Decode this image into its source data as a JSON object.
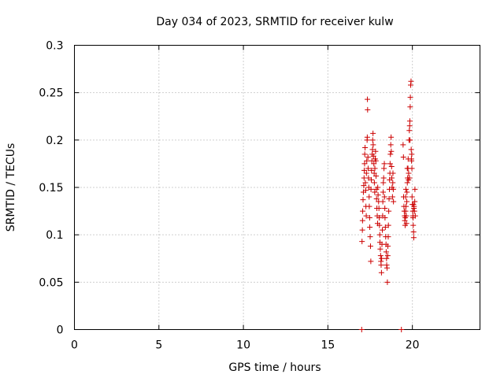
{
  "chart_data": {
    "type": "scatter",
    "title": "Day 034 of 2023, SRMTID for receiver kulw",
    "xlabel": "GPS time / hours",
    "ylabel": "SRMTID / TECUs",
    "xlim": [
      0,
      24
    ],
    "ylim": [
      0,
      0.3
    ],
    "x_ticks": [
      "0",
      "5",
      "10",
      "15",
      "20"
    ],
    "y_ticks": [
      "0",
      "0.05",
      "0.1",
      "0.15",
      "0.2",
      "0.25",
      "0.3"
    ],
    "grid": true,
    "legend": "none",
    "marker": "plus",
    "color": "#cc0000",
    "series": [
      {
        "values": [
          [
            17.0,
            0.0
          ],
          [
            19.35,
            0.0
          ],
          [
            17.02,
            0.093
          ],
          [
            17.04,
            0.105
          ],
          [
            17.05,
            0.115
          ],
          [
            17.06,
            0.125
          ],
          [
            17.08,
            0.137
          ],
          [
            17.1,
            0.145
          ],
          [
            17.12,
            0.152
          ],
          [
            17.14,
            0.16
          ],
          [
            17.15,
            0.168
          ],
          [
            17.17,
            0.175
          ],
          [
            17.18,
            0.185
          ],
          [
            17.2,
            0.192
          ],
          [
            17.22,
            0.155
          ],
          [
            17.24,
            0.147
          ],
          [
            17.25,
            0.13
          ],
          [
            17.27,
            0.12
          ],
          [
            17.28,
            0.165
          ],
          [
            17.3,
            0.178
          ],
          [
            17.32,
            0.2
          ],
          [
            17.33,
            0.203
          ],
          [
            17.34,
            0.243
          ],
          [
            17.35,
            0.232
          ],
          [
            17.37,
            0.182
          ],
          [
            17.38,
            0.17
          ],
          [
            17.4,
            0.16
          ],
          [
            17.42,
            0.15
          ],
          [
            17.44,
            0.14
          ],
          [
            17.45,
            0.13
          ],
          [
            17.47,
            0.118
          ],
          [
            17.48,
            0.108
          ],
          [
            17.5,
            0.098
          ],
          [
            17.52,
            0.088
          ],
          [
            17.54,
            0.072
          ],
          [
            17.55,
            0.148
          ],
          [
            17.57,
            0.158
          ],
          [
            17.58,
            0.168
          ],
          [
            17.6,
            0.178
          ],
          [
            17.62,
            0.185
          ],
          [
            17.64,
            0.19
          ],
          [
            17.65,
            0.2
          ],
          [
            17.67,
            0.207
          ],
          [
            17.68,
            0.195
          ],
          [
            17.7,
            0.183
          ],
          [
            17.72,
            0.175
          ],
          [
            17.74,
            0.165
          ],
          [
            17.75,
            0.155
          ],
          [
            17.77,
            0.145
          ],
          [
            17.78,
            0.17
          ],
          [
            17.8,
            0.18
          ],
          [
            17.82,
            0.188
          ],
          [
            17.84,
            0.178
          ],
          [
            17.85,
            0.162
          ],
          [
            17.87,
            0.148
          ],
          [
            17.88,
            0.138
          ],
          [
            17.9,
            0.128
          ],
          [
            17.92,
            0.12
          ],
          [
            17.94,
            0.112
          ],
          [
            17.95,
            0.15
          ],
          [
            17.97,
            0.142
          ],
          [
            18.0,
            0.135
          ],
          [
            18.02,
            0.128
          ],
          [
            18.04,
            0.118
          ],
          [
            18.05,
            0.11
          ],
          [
            18.07,
            0.1
          ],
          [
            18.08,
            0.092
          ],
          [
            18.1,
            0.085
          ],
          [
            18.12,
            0.078
          ],
          [
            18.14,
            0.072
          ],
          [
            18.15,
            0.068
          ],
          [
            18.17,
            0.06
          ],
          [
            18.18,
            0.075
          ],
          [
            18.2,
            0.09
          ],
          [
            18.22,
            0.105
          ],
          [
            18.24,
            0.12
          ],
          [
            18.25,
            0.135
          ],
          [
            18.27,
            0.145
          ],
          [
            18.28,
            0.155
          ],
          [
            18.3,
            0.16
          ],
          [
            18.32,
            0.17
          ],
          [
            18.34,
            0.175
          ],
          [
            18.35,
            0.14
          ],
          [
            18.37,
            0.128
          ],
          [
            18.38,
            0.118
          ],
          [
            18.4,
            0.108
          ],
          [
            18.42,
            0.098
          ],
          [
            18.44,
            0.09
          ],
          [
            18.45,
            0.082
          ],
          [
            18.47,
            0.075
          ],
          [
            18.48,
            0.068
          ],
          [
            18.5,
            0.065
          ],
          [
            18.52,
            0.05
          ],
          [
            18.54,
            0.078
          ],
          [
            18.55,
            0.088
          ],
          [
            18.57,
            0.098
          ],
          [
            18.58,
            0.11
          ],
          [
            18.6,
            0.125
          ],
          [
            18.62,
            0.138
          ],
          [
            18.64,
            0.148
          ],
          [
            18.65,
            0.158
          ],
          [
            18.67,
            0.165
          ],
          [
            18.68,
            0.175
          ],
          [
            18.7,
            0.185
          ],
          [
            18.72,
            0.195
          ],
          [
            18.74,
            0.203
          ],
          [
            18.75,
            0.188
          ],
          [
            18.77,
            0.172
          ],
          [
            18.78,
            0.16
          ],
          [
            18.8,
            0.15
          ],
          [
            18.82,
            0.14
          ],
          [
            18.84,
            0.155
          ],
          [
            18.85,
            0.165
          ],
          [
            18.87,
            0.148
          ],
          [
            18.88,
            0.135
          ],
          [
            19.45,
            0.195
          ],
          [
            19.47,
            0.182
          ],
          [
            19.48,
            0.14
          ],
          [
            19.5,
            0.13
          ],
          [
            19.52,
            0.125
          ],
          [
            19.54,
            0.12
          ],
          [
            19.55,
            0.115
          ],
          [
            19.57,
            0.11
          ],
          [
            19.58,
            0.118
          ],
          [
            19.6,
            0.125
          ],
          [
            19.62,
            0.13
          ],
          [
            19.64,
            0.12
          ],
          [
            19.65,
            0.112
          ],
          [
            19.67,
            0.135
          ],
          [
            19.68,
            0.145
          ],
          [
            19.7,
            0.155
          ],
          [
            19.72,
            0.16
          ],
          [
            19.74,
            0.17
          ],
          [
            19.75,
            0.18
          ],
          [
            19.77,
            0.158
          ],
          [
            19.78,
            0.165
          ],
          [
            19.8,
            0.2
          ],
          [
            19.82,
            0.21
          ],
          [
            19.84,
            0.215
          ],
          [
            19.85,
            0.22
          ],
          [
            19.87,
            0.235
          ],
          [
            19.88,
            0.245
          ],
          [
            19.9,
            0.258
          ],
          [
            19.92,
            0.262
          ],
          [
            19.93,
            0.19
          ],
          [
            19.94,
            0.18
          ],
          [
            19.95,
            0.178
          ],
          [
            19.97,
            0.17
          ],
          [
            19.98,
            0.14
          ],
          [
            20.0,
            0.132
          ],
          [
            20.02,
            0.125
          ],
          [
            20.04,
            0.118
          ],
          [
            20.05,
            0.11
          ],
          [
            20.07,
            0.103
          ],
          [
            20.08,
            0.097
          ],
          [
            20.1,
            0.13
          ],
          [
            20.12,
            0.125
          ],
          [
            20.14,
            0.135
          ],
          [
            20.15,
            0.148
          ],
          [
            20.17,
            0.12
          ],
          [
            19.6,
            0.14
          ],
          [
            19.62,
            0.148
          ],
          [
            19.7,
            0.17
          ],
          [
            19.83,
            0.16
          ],
          [
            19.86,
            0.2
          ],
          [
            19.96,
            0.185
          ],
          [
            20.03,
            0.12
          ],
          [
            20.06,
            0.132
          ],
          [
            20.09,
            0.128
          ]
        ]
      }
    ]
  }
}
